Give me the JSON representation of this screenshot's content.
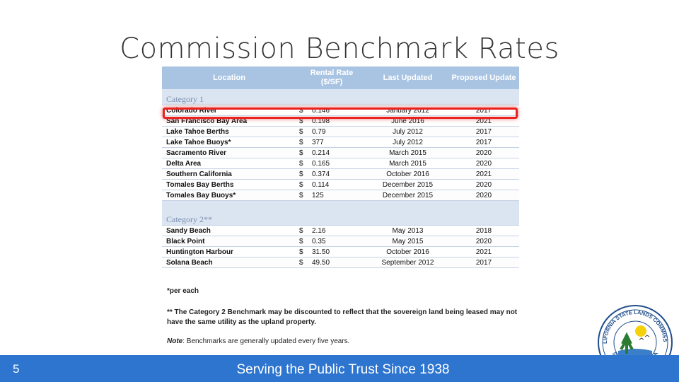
{
  "slide": {
    "title": "Commission Benchmark Rates",
    "page_number": "5",
    "footer_text": "Serving the Public Trust Since 1938"
  },
  "table": {
    "headers": {
      "location": "Location",
      "rate_line1": "Rental Rate",
      "rate_line2": "($/SF)",
      "last_updated": "Last Updated",
      "proposed_update": "Proposed Update"
    },
    "category1": {
      "label": "Category 1",
      "rows": [
        {
          "location": "Colorado River",
          "currency": "$",
          "rate": "0.146",
          "last_updated": "January 2012",
          "proposed": "2017"
        },
        {
          "location": "San Francisco Bay Area",
          "currency": "$",
          "rate": "0.198",
          "last_updated": "June 2016",
          "proposed": "2021"
        },
        {
          "location": "Lake Tahoe Berths",
          "currency": "$",
          "rate": "0.79",
          "last_updated": "July 2012",
          "proposed": "2017"
        },
        {
          "location": "Lake Tahoe Buoys*",
          "currency": "$",
          "rate": "377",
          "last_updated": "July 2012",
          "proposed": "2017"
        },
        {
          "location": "Sacramento River",
          "currency": "$",
          "rate": "0.214",
          "last_updated": "March 2015",
          "proposed": "2020"
        },
        {
          "location": "Delta Area",
          "currency": "$",
          "rate": "0.165",
          "last_updated": "March 2015",
          "proposed": "2020"
        },
        {
          "location": "Southern California",
          "currency": "$",
          "rate": "0.374",
          "last_updated": "October 2016",
          "proposed": "2021"
        },
        {
          "location": "Tomales Bay Berths",
          "currency": "$",
          "rate": "0.114",
          "last_updated": "December 2015",
          "proposed": "2020"
        },
        {
          "location": "Tomales Bay Buoys*",
          "currency": "$",
          "rate": "125",
          "last_updated": "December 2015",
          "proposed": "2020"
        }
      ]
    },
    "category2": {
      "label": "Category 2**",
      "rows": [
        {
          "location": "Sandy Beach",
          "currency": "$",
          "rate": "2.16",
          "last_updated": "May 2013",
          "proposed": "2018"
        },
        {
          "location": "Black Point",
          "currency": "$",
          "rate": "0.35",
          "last_updated": "May 2015",
          "proposed": "2020"
        },
        {
          "location": "Huntington Harbour",
          "currency": "$",
          "rate": "31.50",
          "last_updated": "October 2016",
          "proposed": "2021"
        },
        {
          "location": "Solana Beach",
          "currency": "$",
          "rate": "49.50",
          "last_updated": "September 2012",
          "proposed": "2017"
        }
      ]
    },
    "highlighted_row": "Colorado River"
  },
  "footnotes": {
    "per_each": "*per each",
    "category2_note": "** The Category 2 Benchmark may be discounted to reflect that the sovereign land being leased may not have the same utility as the upland property.",
    "note_label": "Note",
    "note_text": ":  Benchmarks are generally updated every five years."
  },
  "seal": {
    "top_text": "CALIFORNIA STATE LANDS COMMISSION",
    "bottom_text": "STATE OF CALIFORNIA"
  },
  "colors": {
    "header_bg": "#a9c4e3",
    "category_bg": "#dbe5f1",
    "highlight": "#e8231f",
    "footer_bg": "#2e75d0"
  }
}
